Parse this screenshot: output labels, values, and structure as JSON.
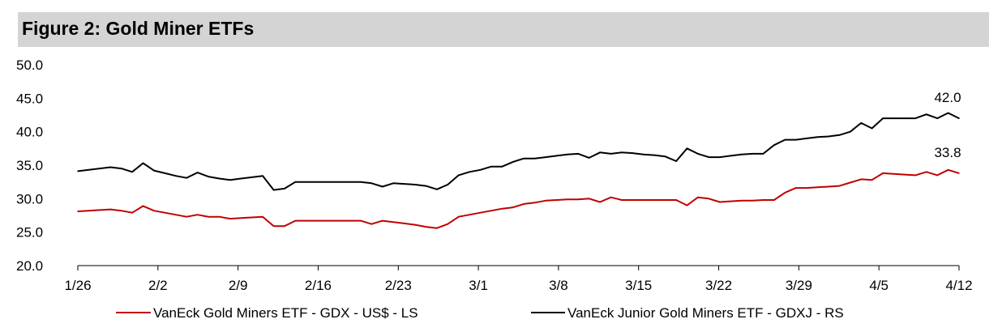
{
  "figure": {
    "title": "Figure 2: Gold Miner ETFs"
  },
  "chart_data": {
    "type": "line",
    "title": "Figure 2: Gold Miner ETFs",
    "ylim": [
      20,
      50
    ],
    "y_ticks": [
      "20.0",
      "25.0",
      "30.0",
      "35.0",
      "40.0",
      "45.0",
      "50.0"
    ],
    "x_ticks": [
      "1/26",
      "2/2",
      "2/9",
      "2/16",
      "2/23",
      "3/1",
      "3/8",
      "3/15",
      "3/22",
      "3/29",
      "4/5",
      "4/12"
    ],
    "grid": false,
    "legend_position": "bottom",
    "series": [
      {
        "name": "VanEck Gold Miners ETF  - GDX  - US$ - LS",
        "color": "#c00000",
        "end_label": "33.8",
        "values": [
          28.1,
          28.2,
          28.3,
          28.4,
          28.2,
          27.9,
          28.9,
          28.2,
          27.9,
          27.6,
          27.3,
          27.6,
          27.3,
          27.3,
          27.0,
          27.1,
          27.2,
          27.3,
          25.9,
          25.9,
          26.7,
          26.7,
          26.7,
          26.7,
          26.7,
          26.7,
          26.7,
          26.2,
          26.7,
          26.5,
          26.3,
          26.1,
          25.8,
          25.6,
          26.2,
          27.3,
          27.6,
          27.9,
          28.2,
          28.5,
          28.7,
          29.2,
          29.4,
          29.7,
          29.8,
          29.9,
          29.9,
          30.0,
          29.5,
          30.2,
          29.8,
          29.8,
          29.8,
          29.8,
          29.8,
          29.8,
          29.0,
          30.2,
          30.0,
          29.5,
          29.6,
          29.7,
          29.7,
          29.8,
          29.8,
          30.9,
          31.6,
          31.6,
          31.7,
          31.8,
          31.9,
          32.4,
          32.9,
          32.8,
          33.8,
          33.7,
          33.6,
          33.5,
          34.0,
          33.5,
          34.3,
          33.8
        ]
      },
      {
        "name": "VanEck Junior Gold Miners ETF - GDXJ - RS",
        "color": "#000000",
        "end_label": "42.0",
        "values": [
          34.1,
          34.3,
          34.5,
          34.7,
          34.5,
          34.0,
          35.3,
          34.2,
          33.8,
          33.4,
          33.1,
          33.9,
          33.3,
          33.0,
          32.8,
          33.0,
          33.2,
          33.4,
          31.3,
          31.5,
          32.5,
          32.5,
          32.5,
          32.5,
          32.5,
          32.5,
          32.5,
          32.3,
          31.8,
          32.3,
          32.2,
          32.1,
          31.9,
          31.4,
          32.1,
          33.5,
          34.0,
          34.3,
          34.8,
          34.8,
          35.5,
          36.0,
          36.0,
          36.2,
          36.4,
          36.6,
          36.7,
          36.1,
          36.9,
          36.7,
          36.9,
          36.8,
          36.6,
          36.5,
          36.3,
          35.6,
          37.5,
          36.7,
          36.2,
          36.2,
          36.4,
          36.6,
          36.7,
          36.7,
          38.0,
          38.8,
          38.8,
          39.0,
          39.2,
          39.3,
          39.5,
          40.0,
          41.3,
          40.5,
          42.0,
          42.0,
          42.0,
          42.0,
          42.6,
          42.0,
          42.8,
          42.0
        ]
      }
    ]
  }
}
